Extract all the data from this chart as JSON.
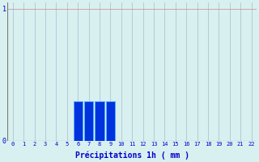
{
  "title": "",
  "xlabel": "Précipitations 1h ( mm )",
  "xlabel_fontsize": 7,
  "xlabel_color": "#0000cc",
  "background_color": "#d8f0f0",
  "bar_color": "#0033dd",
  "bar_edge_color": "#55aaff",
  "grid_color": "#aabbcc",
  "hours": [
    0,
    1,
    2,
    3,
    4,
    5,
    6,
    7,
    8,
    9,
    10,
    11,
    12,
    13,
    14,
    15,
    16,
    17,
    18,
    19,
    20,
    21,
    22
  ],
  "values": [
    0,
    0,
    0,
    0,
    0,
    0,
    0.3,
    0.3,
    0.3,
    0.3,
    0,
    0,
    0,
    0,
    0,
    0,
    0,
    0,
    0,
    0,
    0,
    0,
    0
  ],
  "ylim": [
    0,
    1.05
  ],
  "xlim": [
    -0.5,
    22.5
  ],
  "yticks": [
    0,
    1
  ],
  "xticks": [
    0,
    1,
    2,
    3,
    4,
    5,
    6,
    7,
    8,
    9,
    10,
    11,
    12,
    13,
    14,
    15,
    16,
    17,
    18,
    19,
    20,
    21,
    22
  ],
  "tick_color": "#0000cc",
  "tick_fontsize": 5,
  "ytick_fontsize": 6,
  "axis_color": "#777777",
  "bar_width": 0.85
}
